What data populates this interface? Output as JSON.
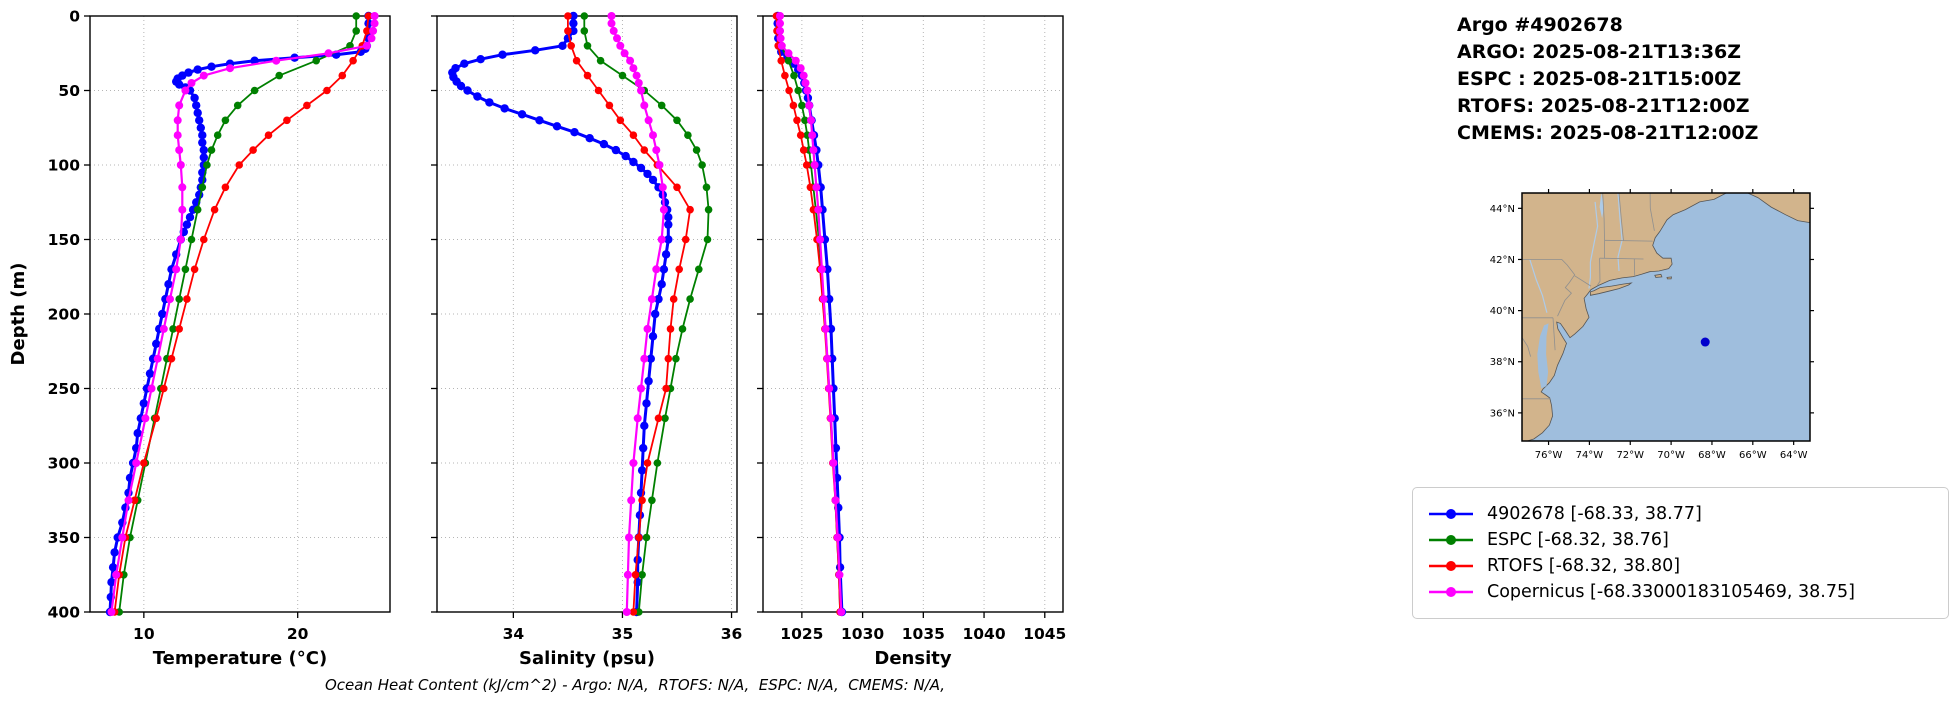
{
  "header": {
    "lines": [
      "Argo #4902678",
      "ARGO: 2025-08-21T13:36Z",
      "ESPC : 2025-08-21T15:00Z",
      "RTOFS: 2025-08-21T12:00Z",
      "CMEMS: 2025-08-21T12:00Z"
    ]
  },
  "caption": "Ocean Heat Content (kJ/cm^2) - Argo: N/A,  RTOFS: N/A,  ESPC: N/A,  CMEMS: N/A,",
  "legend": {
    "items": [
      {
        "label": "4902678 [-68.33, 38.77]",
        "color": "#0000ff"
      },
      {
        "label": "ESPC [-68.32, 38.76]",
        "color": "#008000"
      },
      {
        "label": "RTOFS [-68.32, 38.80]",
        "color": "#ff0000"
      },
      {
        "label": "Copernicus [-68.33000183105469, 38.75]",
        "color": "#ff00ff"
      }
    ]
  },
  "map": {
    "extent": {
      "lon_min": -77.3,
      "lon_max": -63.2,
      "lat_min": 34.9,
      "lat_max": 44.6
    },
    "lon_ticks": [
      -76,
      -74,
      -72,
      -70,
      -68,
      -66,
      -64
    ],
    "lon_tick_labels": [
      "76°W",
      "74°W",
      "72°W",
      "70°W",
      "68°W",
      "66°W",
      "64°W"
    ],
    "lat_ticks": [
      36,
      38,
      40,
      42,
      44
    ],
    "lat_tick_labels": [
      "36°N",
      "38°N",
      "40°N",
      "42°N",
      "44°N"
    ],
    "marker": {
      "lon": -68.33,
      "lat": 38.77,
      "color": "#0000cc"
    },
    "land_color": "#d2b48c",
    "ocean_color": "#9fbedd",
    "border_color": "#8f8f8f",
    "river_color": "#aecbe8"
  },
  "chart_data": [
    {
      "type": "line",
      "title": "",
      "xlabel": "Temperature (°C)",
      "ylabel": "Depth (m)",
      "xlim": [
        6.5,
        26.0
      ],
      "ylim": [
        0,
        400
      ],
      "xticks": [
        10,
        20
      ],
      "yticks": [
        0,
        50,
        100,
        150,
        200,
        250,
        300,
        350,
        400
      ],
      "grid": true,
      "series": [
        {
          "name": "4902678",
          "color": "#0000ff",
          "line_width": 3,
          "marker_radius": 4.2,
          "depths": [
            0,
            5,
            10,
            15,
            20,
            22,
            24,
            26,
            28,
            30,
            32,
            34,
            36,
            38,
            40,
            42,
            44,
            46,
            48,
            50,
            55,
            60,
            65,
            70,
            75,
            80,
            85,
            90,
            95,
            100,
            105,
            110,
            115,
            120,
            125,
            130,
            135,
            140,
            145,
            150,
            160,
            170,
            180,
            190,
            200,
            210,
            220,
            230,
            240,
            250,
            260,
            270,
            280,
            290,
            300,
            310,
            320,
            330,
            340,
            350,
            360,
            370,
            380,
            390,
            400
          ],
          "values": [
            24.6,
            24.6,
            24.6,
            24.6,
            24.5,
            24.4,
            24.1,
            22.5,
            19.8,
            17.2,
            15.6,
            14.4,
            13.5,
            12.9,
            12.5,
            12.2,
            12.1,
            12.3,
            12.7,
            13.0,
            13.3,
            13.4,
            13.5,
            13.6,
            13.7,
            13.8,
            13.8,
            13.9,
            13.9,
            13.9,
            13.8,
            13.8,
            13.7,
            13.6,
            13.4,
            13.2,
            13.0,
            12.8,
            12.6,
            12.4,
            12.1,
            11.8,
            11.6,
            11.4,
            11.2,
            11.0,
            10.8,
            10.6,
            10.4,
            10.2,
            10.0,
            9.8,
            9.6,
            9.5,
            9.3,
            9.1,
            9.0,
            8.8,
            8.6,
            8.3,
            8.1,
            8.0,
            7.9,
            7.85,
            7.8
          ]
        },
        {
          "name": "ESPC",
          "color": "#008000",
          "line_width": 1.8,
          "marker_radius": 3.8,
          "depths": [
            0,
            10,
            20,
            30,
            40,
            50,
            60,
            70,
            80,
            90,
            100,
            115,
            130,
            150,
            170,
            190,
            210,
            230,
            250,
            270,
            300,
            325,
            350,
            375,
            400
          ],
          "values": [
            23.8,
            23.8,
            23.4,
            21.2,
            18.8,
            17.2,
            16.1,
            15.3,
            14.8,
            14.4,
            14.1,
            13.8,
            13.5,
            13.1,
            12.7,
            12.3,
            11.9,
            11.5,
            11.1,
            10.7,
            10.1,
            9.6,
            9.1,
            8.7,
            8.4
          ]
        },
        {
          "name": "RTOFS",
          "color": "#ff0000",
          "line_width": 1.8,
          "marker_radius": 3.8,
          "depths": [
            0,
            10,
            20,
            30,
            40,
            50,
            60,
            70,
            80,
            90,
            100,
            115,
            130,
            150,
            170,
            190,
            210,
            230,
            250,
            270,
            300,
            325,
            350,
            375,
            400
          ],
          "values": [
            24.6,
            24.5,
            24.2,
            23.6,
            22.9,
            21.9,
            20.6,
            19.3,
            18.1,
            17.1,
            16.2,
            15.3,
            14.6,
            13.9,
            13.3,
            12.8,
            12.3,
            11.8,
            11.3,
            10.8,
            10.0,
            9.4,
            8.8,
            8.4,
            8.1
          ]
        },
        {
          "name": "Copernicus",
          "color": "#ff00ff",
          "line_width": 2.2,
          "marker_radius": 4,
          "depths": [
            0,
            5,
            10,
            15,
            20,
            25,
            30,
            35,
            40,
            45,
            50,
            60,
            70,
            80,
            90,
            100,
            115,
            130,
            150,
            170,
            190,
            210,
            230,
            250,
            270,
            300,
            325,
            350,
            375,
            400
          ],
          "values": [
            25.0,
            25.0,
            24.9,
            24.8,
            24.5,
            22.0,
            18.6,
            15.6,
            13.9,
            13.1,
            12.7,
            12.3,
            12.2,
            12.2,
            12.3,
            12.4,
            12.5,
            12.5,
            12.4,
            12.1,
            11.7,
            11.3,
            10.9,
            10.5,
            10.1,
            9.5,
            9.0,
            8.6,
            8.2,
            7.9
          ]
        }
      ]
    },
    {
      "type": "line",
      "title": "",
      "xlabel": "Salinity (psu)",
      "ylabel": "Depth (m)",
      "xlim": [
        33.3,
        36.05
      ],
      "ylim": [
        0,
        400
      ],
      "xticks": [
        34,
        35,
        36
      ],
      "yticks": [
        0,
        50,
        100,
        150,
        200,
        250,
        300,
        350,
        400
      ],
      "grid": true,
      "series": [
        {
          "name": "4902678",
          "color": "#0000ff",
          "line_width": 3,
          "marker_radius": 4.2,
          "depths": [
            0,
            5,
            10,
            15,
            20,
            23,
            26,
            29,
            32,
            35,
            38,
            41,
            44,
            47,
            50,
            54,
            58,
            62,
            66,
            70,
            74,
            78,
            82,
            86,
            90,
            94,
            98,
            102,
            106,
            110,
            115,
            120,
            125,
            130,
            135,
            140,
            150,
            160,
            170,
            180,
            190,
            200,
            215,
            230,
            245,
            260,
            275,
            290,
            305,
            320,
            335,
            350,
            365,
            380,
            400
          ],
          "values": [
            34.55,
            34.55,
            34.55,
            34.5,
            34.45,
            34.2,
            33.9,
            33.7,
            33.55,
            33.47,
            33.44,
            33.45,
            33.48,
            33.52,
            33.58,
            33.67,
            33.78,
            33.92,
            34.08,
            34.24,
            34.4,
            34.56,
            34.7,
            34.83,
            34.94,
            35.03,
            35.1,
            35.17,
            35.23,
            35.28,
            35.33,
            35.37,
            35.39,
            35.41,
            35.42,
            35.42,
            35.42,
            35.4,
            35.38,
            35.36,
            35.33,
            35.3,
            35.28,
            35.26,
            35.24,
            35.22,
            35.2,
            35.19,
            35.18,
            35.17,
            35.16,
            35.15,
            35.14,
            35.14,
            35.13
          ]
        },
        {
          "name": "ESPC",
          "color": "#008000",
          "line_width": 1.8,
          "marker_radius": 3.8,
          "depths": [
            0,
            10,
            20,
            30,
            40,
            50,
            60,
            70,
            80,
            90,
            100,
            115,
            130,
            150,
            170,
            190,
            210,
            230,
            250,
            270,
            300,
            325,
            350,
            375,
            400
          ],
          "values": [
            34.65,
            34.65,
            34.68,
            34.8,
            35.0,
            35.2,
            35.36,
            35.5,
            35.6,
            35.68,
            35.73,
            35.77,
            35.79,
            35.78,
            35.7,
            35.62,
            35.55,
            35.49,
            35.44,
            35.39,
            35.32,
            35.27,
            35.22,
            35.18,
            35.15
          ]
        },
        {
          "name": "RTOFS",
          "color": "#ff0000",
          "line_width": 1.8,
          "marker_radius": 3.8,
          "depths": [
            0,
            10,
            20,
            30,
            40,
            50,
            60,
            70,
            80,
            90,
            100,
            115,
            130,
            150,
            170,
            190,
            210,
            230,
            250,
            270,
            300,
            325,
            350,
            375,
            400
          ],
          "values": [
            34.5,
            34.5,
            34.53,
            34.58,
            34.68,
            34.78,
            34.88,
            34.98,
            35.1,
            35.2,
            35.32,
            35.5,
            35.62,
            35.58,
            35.52,
            35.47,
            35.44,
            35.42,
            35.4,
            35.33,
            35.23,
            35.18,
            35.15,
            35.12,
            35.1
          ]
        },
        {
          "name": "Copernicus",
          "color": "#ff00ff",
          "line_width": 2.2,
          "marker_radius": 4,
          "depths": [
            0,
            5,
            10,
            15,
            20,
            25,
            30,
            35,
            40,
            45,
            50,
            60,
            70,
            80,
            90,
            100,
            115,
            130,
            150,
            170,
            190,
            210,
            230,
            250,
            270,
            300,
            325,
            350,
            375,
            400
          ],
          "values": [
            34.9,
            34.9,
            34.92,
            34.95,
            34.98,
            35.02,
            35.07,
            35.1,
            35.13,
            35.15,
            35.17,
            35.2,
            35.24,
            35.28,
            35.31,
            35.34,
            35.37,
            35.38,
            35.36,
            35.31,
            35.27,
            35.23,
            35.2,
            35.17,
            35.14,
            35.1,
            35.08,
            35.06,
            35.05,
            35.04
          ]
        }
      ]
    },
    {
      "type": "line",
      "title": "",
      "xlabel": "Density",
      "ylabel": "Depth (m)",
      "xlim": [
        1021.8,
        1046.5
      ],
      "ylim": [
        0,
        400
      ],
      "xticks": [
        1025,
        1030,
        1035,
        1040,
        1045
      ],
      "yticks": [
        0,
        50,
        100,
        150,
        200,
        250,
        300,
        350,
        400
      ],
      "grid": true,
      "series": [
        {
          "name": "4902678",
          "color": "#0000ff",
          "line_width": 3,
          "marker_radius": 4.2,
          "depths": [
            0,
            5,
            10,
            15,
            20,
            24,
            28,
            32,
            36,
            40,
            45,
            50,
            55,
            60,
            70,
            80,
            90,
            100,
            115,
            130,
            150,
            170,
            190,
            210,
            230,
            250,
            270,
            290,
            310,
            330,
            350,
            370,
            400
          ],
          "values": [
            1023.0,
            1023.0,
            1023.0,
            1023.05,
            1023.1,
            1023.3,
            1023.8,
            1024.3,
            1024.7,
            1025.0,
            1025.2,
            1025.35,
            1025.5,
            1025.6,
            1025.8,
            1026.0,
            1026.2,
            1026.35,
            1026.55,
            1026.7,
            1026.9,
            1027.1,
            1027.25,
            1027.4,
            1027.5,
            1027.6,
            1027.7,
            1027.8,
            1027.9,
            1028.0,
            1028.1,
            1028.15,
            1028.3
          ]
        },
        {
          "name": "ESPC",
          "color": "#008000",
          "line_width": 1.8,
          "marker_radius": 3.8,
          "depths": [
            0,
            10,
            20,
            30,
            40,
            50,
            60,
            70,
            80,
            90,
            100,
            115,
            130,
            150,
            170,
            190,
            210,
            230,
            250,
            270,
            300,
            325,
            350,
            375,
            400
          ],
          "values": [
            1023.2,
            1023.2,
            1023.3,
            1023.9,
            1024.35,
            1024.7,
            1025.0,
            1025.25,
            1025.45,
            1025.6,
            1025.75,
            1025.95,
            1026.15,
            1026.4,
            1026.6,
            1026.8,
            1026.95,
            1027.1,
            1027.25,
            1027.4,
            1027.6,
            1027.75,
            1027.9,
            1028.05,
            1028.15
          ]
        },
        {
          "name": "RTOFS",
          "color": "#ff0000",
          "line_width": 1.8,
          "marker_radius": 3.8,
          "depths": [
            0,
            10,
            20,
            30,
            40,
            50,
            60,
            70,
            80,
            90,
            100,
            115,
            130,
            150,
            170,
            190,
            210,
            230,
            250,
            270,
            300,
            325,
            350,
            375,
            400
          ],
          "values": [
            1022.9,
            1022.95,
            1023.05,
            1023.3,
            1023.6,
            1023.95,
            1024.3,
            1024.6,
            1024.9,
            1025.15,
            1025.4,
            1025.7,
            1025.95,
            1026.25,
            1026.5,
            1026.7,
            1026.9,
            1027.05,
            1027.2,
            1027.35,
            1027.55,
            1027.75,
            1027.9,
            1028.05,
            1028.15
          ]
        },
        {
          "name": "Copernicus",
          "color": "#ff00ff",
          "line_width": 2.2,
          "marker_radius": 4,
          "depths": [
            0,
            5,
            10,
            15,
            20,
            25,
            30,
            35,
            40,
            45,
            50,
            60,
            70,
            80,
            90,
            100,
            115,
            130,
            150,
            170,
            190,
            210,
            230,
            250,
            270,
            300,
            325,
            350,
            375,
            400
          ],
          "values": [
            1023.2,
            1023.2,
            1023.2,
            1023.25,
            1023.35,
            1023.9,
            1024.5,
            1024.9,
            1025.15,
            1025.3,
            1025.45,
            1025.6,
            1025.75,
            1025.85,
            1025.95,
            1026.05,
            1026.2,
            1026.35,
            1026.5,
            1026.65,
            1026.8,
            1026.95,
            1027.1,
            1027.25,
            1027.4,
            1027.6,
            1027.78,
            1027.95,
            1028.1,
            1028.25
          ]
        }
      ]
    }
  ]
}
